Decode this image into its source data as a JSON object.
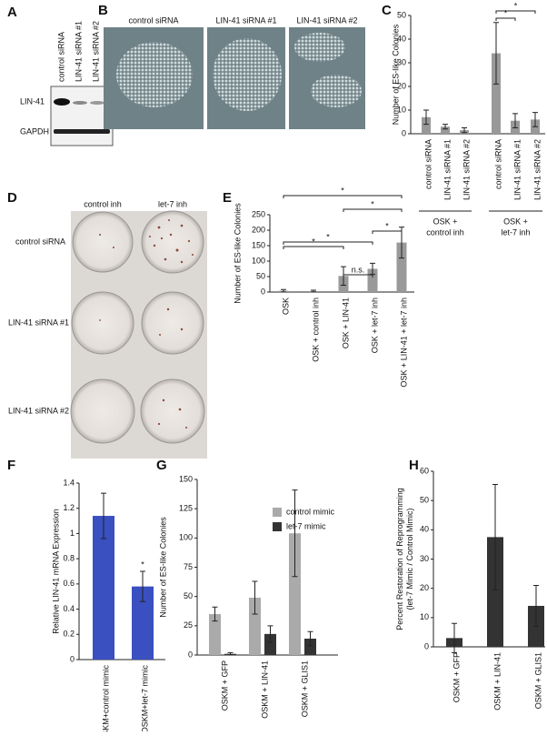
{
  "figure": {
    "panel_letters": [
      "A",
      "B",
      "C",
      "D",
      "E",
      "F",
      "G",
      "H"
    ],
    "blot": {
      "lanes": [
        "control siRNA",
        "LIN-41 siRNA #1",
        "LIN-41 siRNA #2"
      ],
      "rows": [
        "LIN-41",
        "GAPDH"
      ]
    },
    "micrographs": [
      "control siRNA",
      "LIN-41 siRNA #1",
      "LIN-41 siRNA #2"
    ],
    "plates": {
      "columns": [
        "control inh",
        "let-7 inh"
      ],
      "rows": [
        "control siRNA",
        "LIN-41 siRNA #1",
        "LIN-41 siRNA #2"
      ]
    }
  },
  "chart_data": [
    {
      "type": "bar",
      "y_label": "Number of ES-like Colonies",
      "categories": [
        "control siRNA",
        "LIN-41 siRNA #1",
        "LIN-41 siRNA #2",
        "control siRNA",
        "LIN-41 siRNA #1",
        "LIN-41 siRNA #2"
      ],
      "values": [
        7,
        3,
        1.5,
        34,
        5.5,
        6
      ],
      "errors": [
        3,
        1,
        1,
        13,
        3,
        3
      ],
      "color": "#999999",
      "groups": [
        [
          "OSK +",
          "control inh"
        ],
        [
          "OSK +",
          "let-7 inh"
        ]
      ],
      "annotations": [
        "*",
        "*"
      ],
      "ylim": [
        0,
        50
      ],
      "yticks": [
        0,
        10,
        20,
        30,
        40,
        50
      ]
    },
    {
      "type": "bar",
      "y_label": "Number of ES-like Colonies",
      "categories": [
        "OSK",
        "OSK + control inh",
        "OSK + LIN-41",
        "OSK + let-7 inh",
        "OSK + LIN-41 + let-7 inh"
      ],
      "values": [
        4,
        3,
        52,
        75,
        160
      ],
      "errors": [
        4,
        3,
        30,
        18,
        50
      ],
      "color": "#999999",
      "annotations": [
        "*",
        "*",
        "*",
        "*",
        "*",
        "n.s."
      ],
      "ylim": [
        0,
        250
      ],
      "yticks": [
        0,
        50,
        100,
        150,
        200,
        250
      ]
    },
    {
      "type": "bar",
      "y_label": "Relative LIN-41 mRNA Expression",
      "categories": [
        "OSKM+control mimic",
        "OSKM+let-7 mimic"
      ],
      "values": [
        1.14,
        0.58
      ],
      "errors": [
        0.18,
        0.12
      ],
      "color": "#3a4fc0",
      "annotations": [
        "*"
      ],
      "ylim": [
        0,
        1.4
      ],
      "yticks": [
        0,
        0.2,
        0.4,
        0.6,
        0.8,
        1,
        1.2,
        1.4
      ]
    },
    {
      "type": "bar",
      "y_label": "Number of ES-like Colonies",
      "categories": [
        "OSKM + GFP",
        "OSKM + LIN-41",
        "OSKM + GLIS1"
      ],
      "series": [
        {
          "name": "control mimic",
          "color": "#aaaaaa",
          "values": [
            35,
            49,
            104
          ],
          "errors": [
            6,
            14,
            37
          ]
        },
        {
          "name": "let-7 mimic",
          "color": "#333333",
          "values": [
            1,
            18,
            14
          ],
          "errors": [
            1,
            7,
            6
          ]
        }
      ],
      "ylim": [
        0,
        150
      ],
      "yticks": [
        0,
        25,
        50,
        75,
        100,
        125,
        150
      ]
    },
    {
      "type": "bar",
      "y_label": [
        "Percent Restoration of Reprogramming",
        "(let-7 Mimic / Control Mimic)"
      ],
      "categories": [
        "OSKM + GFP",
        "OSKM + LIN-41",
        "OSKM + GLIS1"
      ],
      "values": [
        3,
        37.5,
        14
      ],
      "errors": [
        5,
        18,
        7
      ],
      "color": "#333333",
      "ylim": [
        0,
        60
      ],
      "yticks": [
        0,
        10,
        20,
        30,
        40,
        50,
        60
      ]
    }
  ]
}
